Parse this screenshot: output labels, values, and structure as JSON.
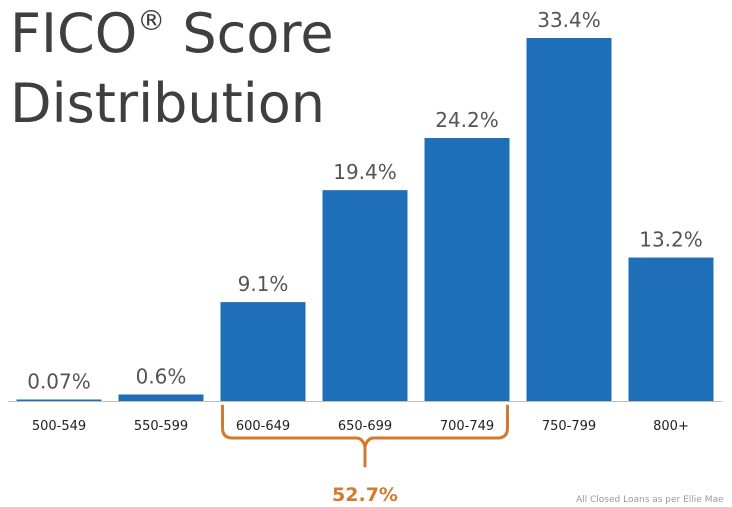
{
  "title": {
    "line1_text": "FICO",
    "line1_sup": "®",
    "line1_rest": " Score",
    "line2": "Distribution"
  },
  "colors": {
    "bar": "#1f6fb8",
    "axis": "#bdbdbd",
    "bracket": "#d27a2e"
  },
  "chart_data": {
    "type": "bar",
    "title": "FICO® Score Distribution",
    "categories": [
      "500-549",
      "550-599",
      "600-649",
      "650-699",
      "700-749",
      "750-799",
      "800+"
    ],
    "values": [
      0.07,
      0.6,
      9.1,
      19.4,
      24.2,
      33.4,
      13.2
    ],
    "value_labels": [
      "0.07%",
      "0.6%",
      "9.1%",
      "19.4%",
      "24.2%",
      "33.4%",
      "13.2%"
    ],
    "ylim": [
      0,
      33.4
    ],
    "grid": false,
    "legend": "none",
    "annotations": [
      {
        "type": "bracket",
        "from_category": "600-649",
        "to_category": "700-749",
        "label": "52.7%"
      }
    ]
  },
  "source_note": "All Closed Loans as per Ellie Mae"
}
